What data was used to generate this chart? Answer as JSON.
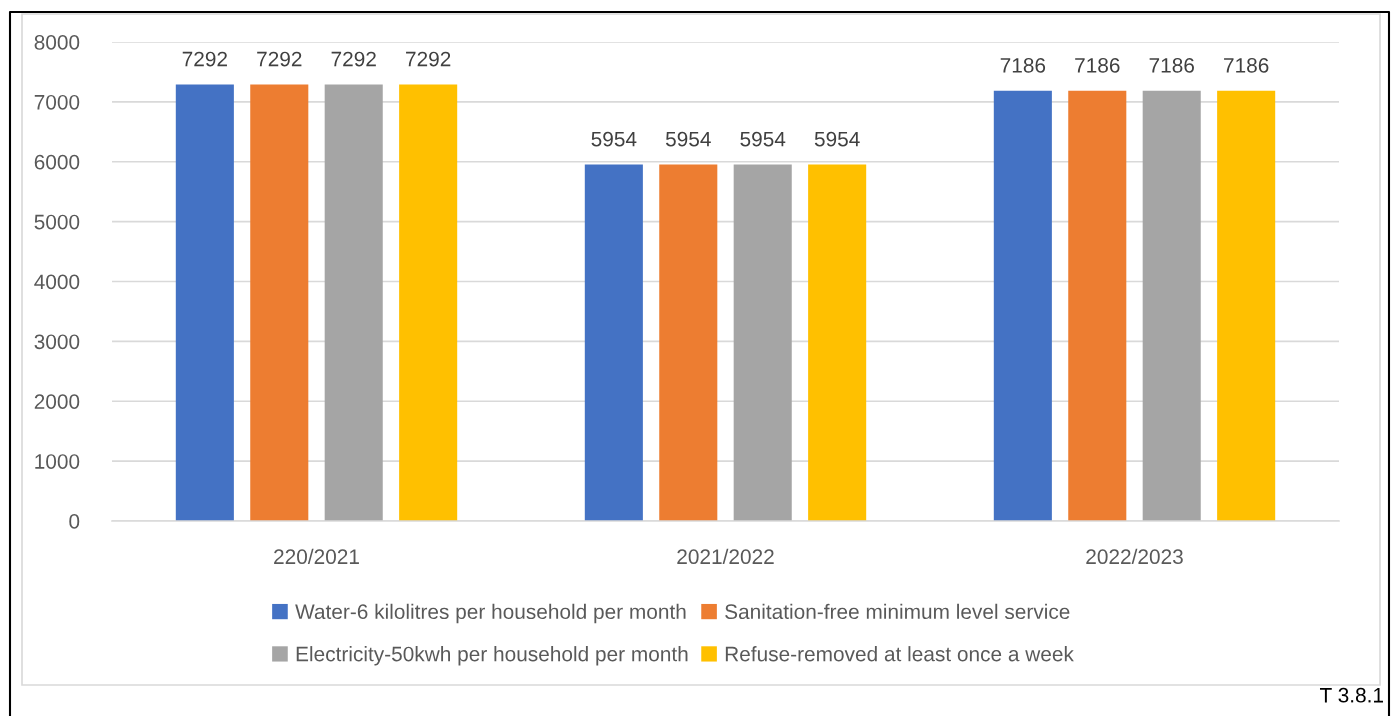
{
  "chart_data": {
    "type": "bar",
    "categories": [
      "220/2021",
      "2021/2022",
      "2022/2023"
    ],
    "series": [
      {
        "name": "Water-6 kilolitres per household per month",
        "color": "#4472c4",
        "values": [
          7292,
          5954,
          7186
        ]
      },
      {
        "name": "Sanitation-free minimum level service",
        "color": "#ed7d31",
        "values": [
          7292,
          5954,
          7186
        ]
      },
      {
        "name": "Electricity-50kwh per household per month",
        "color": "#a5a5a5",
        "values": [
          7292,
          5954,
          7186
        ]
      },
      {
        "name": "Refuse-removed at least once a week",
        "color": "#ffc000",
        "values": [
          7292,
          5954,
          7186
        ]
      }
    ],
    "ylim": [
      0,
      8000
    ],
    "yticks": [
      0,
      1000,
      2000,
      3000,
      4000,
      5000,
      6000,
      7000,
      8000
    ],
    "grid": "y",
    "legend": "bottom",
    "data_labels": true,
    "annotations": [
      "T 3.8.1"
    ]
  }
}
